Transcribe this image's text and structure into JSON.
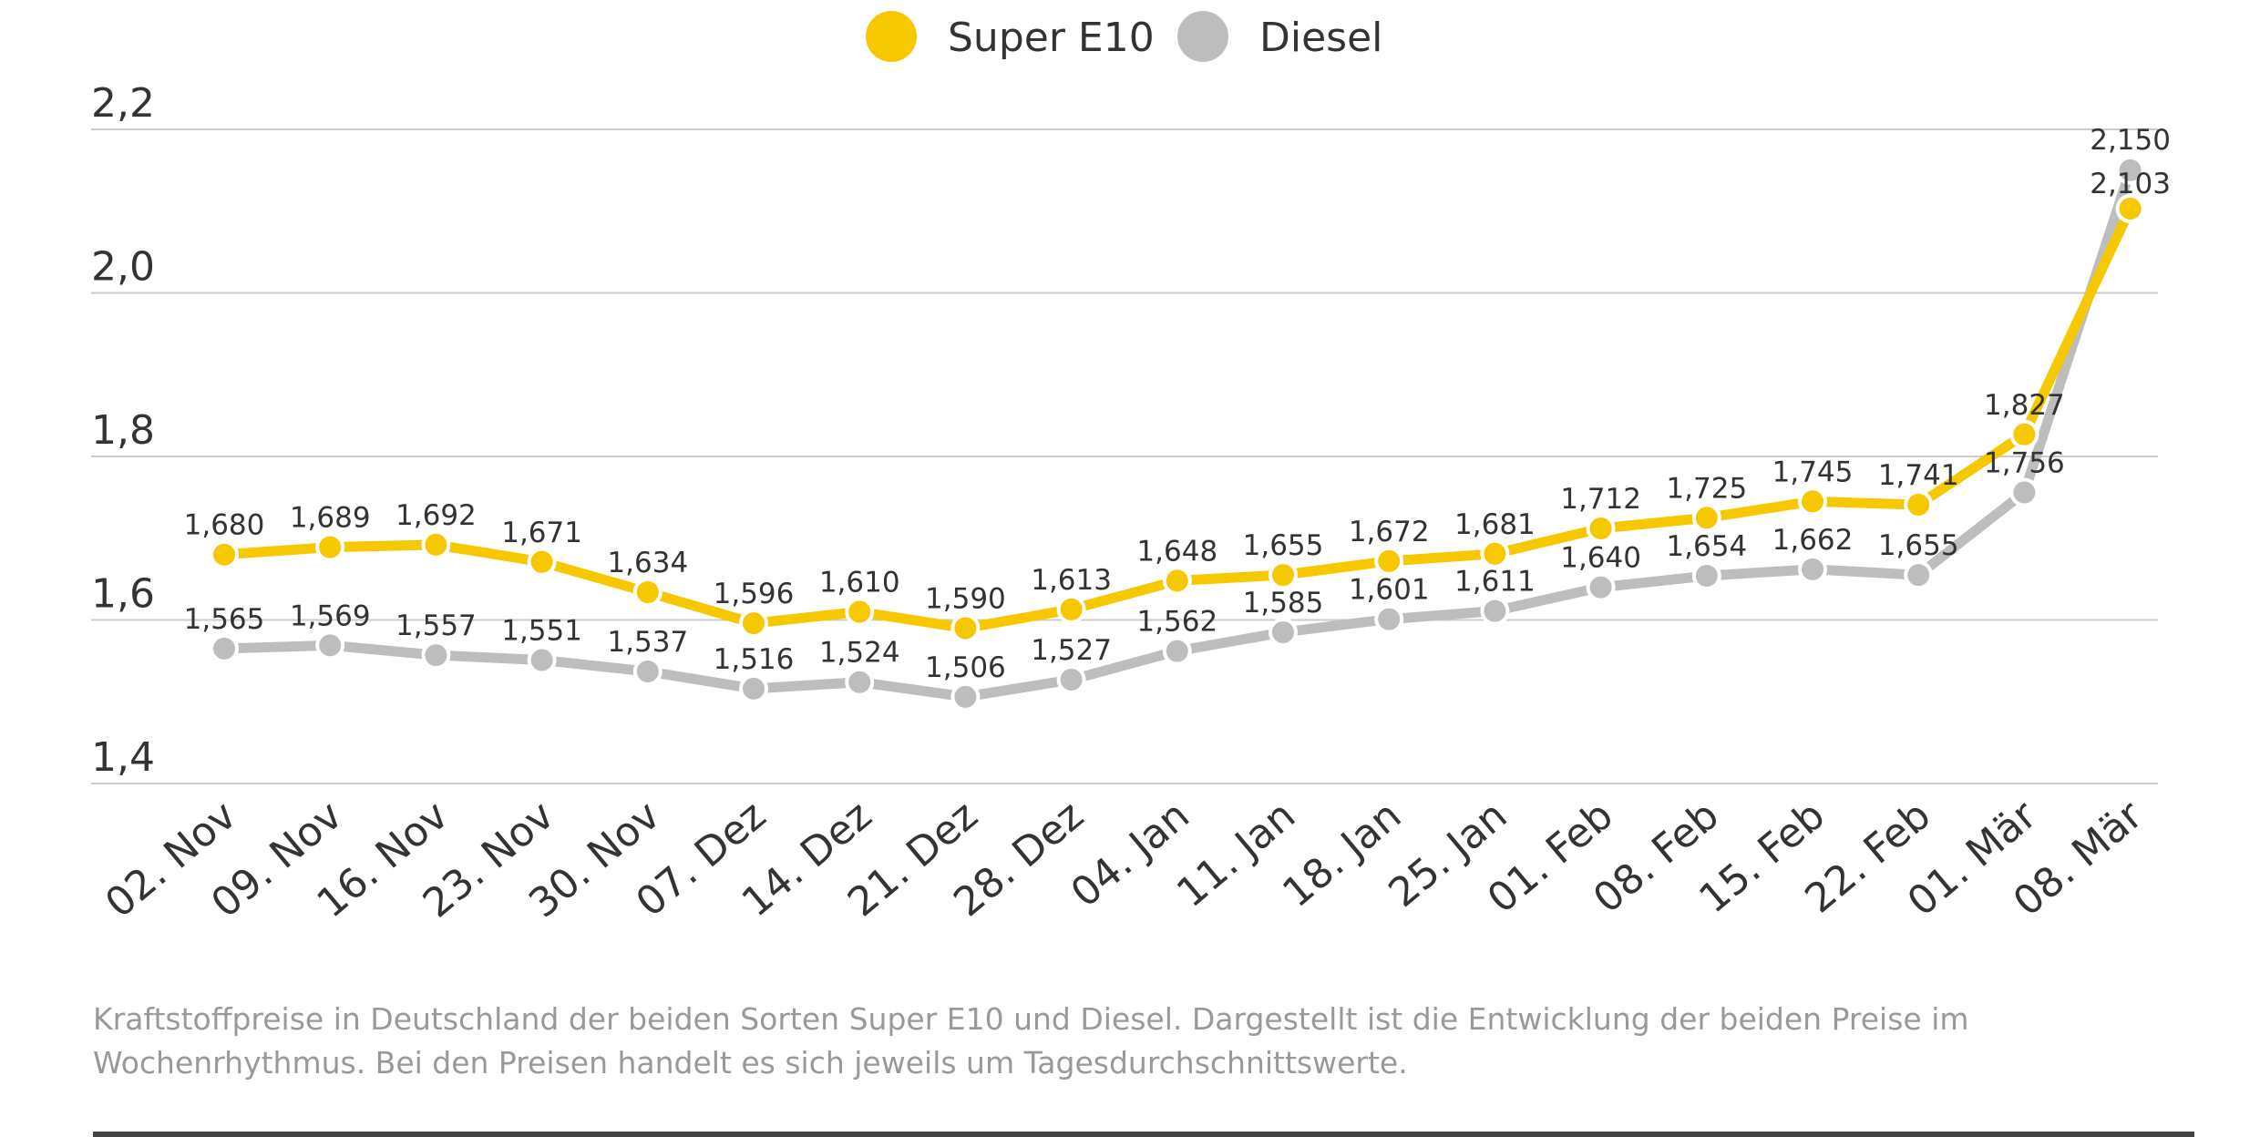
{
  "chart_data": {
    "type": "line",
    "title": "",
    "xlabel": "",
    "ylabel": "",
    "ylim": [
      1.4,
      2.2
    ],
    "yticks": [
      "1,4",
      "1,6",
      "1,8",
      "2,0",
      "2,2"
    ],
    "ytick_values": [
      1.4,
      1.6,
      1.8,
      2.0,
      2.2
    ],
    "grid": true,
    "legend_position": "top-center",
    "categories": [
      "02. Nov",
      "09. Nov",
      "16. Nov",
      "23. Nov",
      "30. Nov",
      "07. Dez",
      "14. Dez",
      "21. Dez",
      "28. Dez",
      "04. Jan",
      "11. Jan",
      "18. Jan",
      "25. Jan",
      "01. Feb",
      "08. Feb",
      "15. Feb",
      "22. Feb",
      "01. Mär",
      "08. Mär"
    ],
    "series": [
      {
        "name": "Super E10",
        "color": "#f5c800",
        "values": [
          1.68,
          1.689,
          1.692,
          1.671,
          1.634,
          1.596,
          1.61,
          1.59,
          1.613,
          1.648,
          1.655,
          1.672,
          1.681,
          1.712,
          1.725,
          1.745,
          1.741,
          1.827,
          2.103
        ],
        "labels": [
          "1,680",
          "1,689",
          "1,692",
          "1,671",
          "1,634",
          "1,596",
          "1,610",
          "1,590",
          "1,613",
          "1,648",
          "1,655",
          "1,672",
          "1,681",
          "1,712",
          "1,725",
          "1,745",
          "1,741",
          "1,827",
          "2,103"
        ]
      },
      {
        "name": "Diesel",
        "color": "#bdbdbd",
        "values": [
          1.565,
          1.569,
          1.557,
          1.551,
          1.537,
          1.516,
          1.524,
          1.506,
          1.527,
          1.562,
          1.585,
          1.601,
          1.611,
          1.64,
          1.654,
          1.662,
          1.655,
          1.756,
          2.15
        ],
        "labels": [
          "1,565",
          "1,569",
          "1,557",
          "1,551",
          "1,537",
          "1,516",
          "1,524",
          "1,506",
          "1,527",
          "1,562",
          "1,585",
          "1,601",
          "1,611",
          "1,640",
          "1,654",
          "1,662",
          "1,655",
          "1,756",
          "2,150"
        ]
      }
    ]
  },
  "caption": "Kraftstoffpreise in Deutschland der beiden Sorten Super E10 und Diesel. Dargestellt ist die Entwicklung der beiden Preise im Wochenrhythmus. Bei den Preisen handelt es sich jeweils um Tagesdurchschnittswerte."
}
